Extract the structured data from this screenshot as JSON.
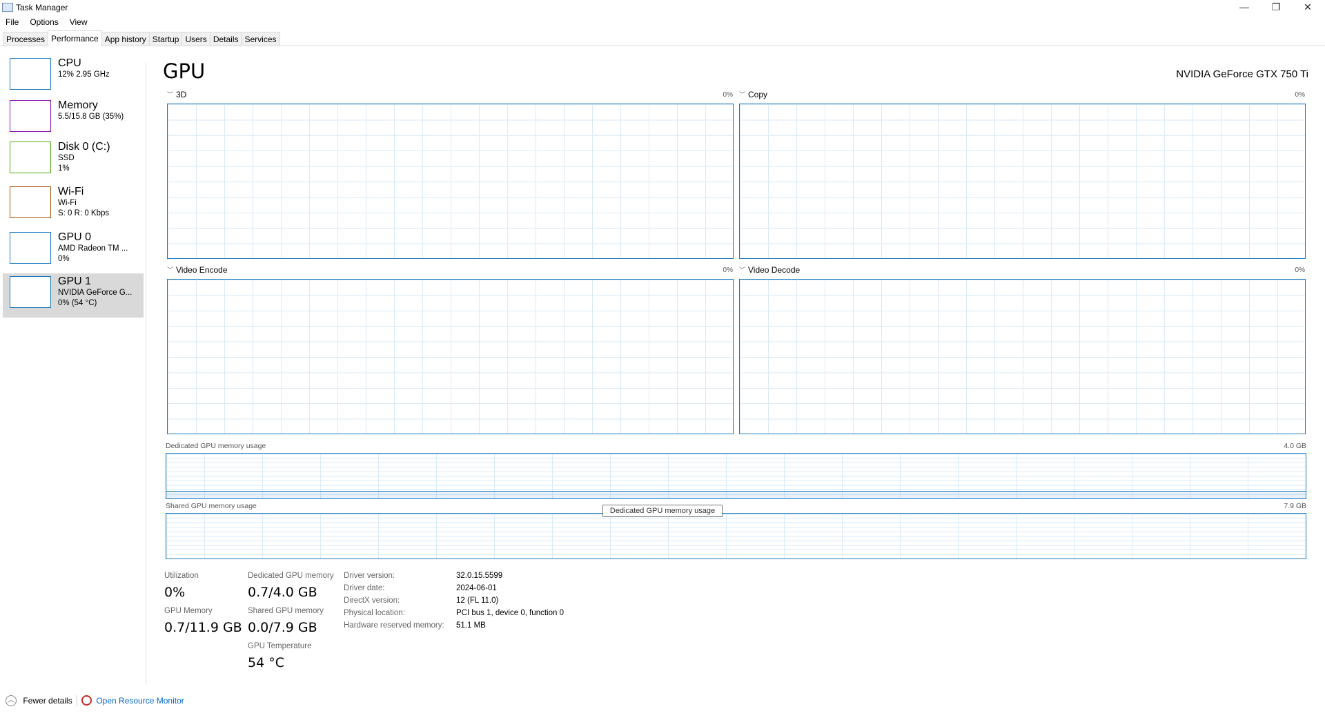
{
  "window": {
    "title": "Task Manager",
    "minimize": "—",
    "restore": "❐",
    "close": "✕"
  },
  "menu": [
    "File",
    "Options",
    "View"
  ],
  "tabs": [
    "Processes",
    "Performance",
    "App history",
    "Startup",
    "Users",
    "Details",
    "Services"
  ],
  "active_tab": "Performance",
  "sidebar": [
    {
      "name": "CPU",
      "line1": "12% 2.95 GHz",
      "line2": "",
      "color": "#1a78c0"
    },
    {
      "name": "Memory",
      "line1": "5.5/15.8 GB (35%)",
      "line2": "",
      "color": "#8b12ae"
    },
    {
      "name": "Disk 0 (C:)",
      "line1": "SSD",
      "line2": "1%",
      "color": "#4da60c"
    },
    {
      "name": "Wi-Fi",
      "line1": "Wi-Fi",
      "line2": "S: 0 R: 0 Kbps",
      "color": "#a74f01"
    },
    {
      "name": "GPU 0",
      "line1": "AMD Radeon TM ...",
      "line2": "0%",
      "color": "#1a78c0"
    },
    {
      "name": "GPU 1",
      "line1": "NVIDIA GeForce G...",
      "line2": "0%  (54 °C)",
      "color": "#1a78c0",
      "selected": true
    }
  ],
  "main": {
    "title": "GPU",
    "gpu_name": "NVIDIA GeForce GTX 750 Ti",
    "engines": [
      {
        "label": "3D",
        "value": "0%"
      },
      {
        "label": "Copy",
        "value": "0%"
      },
      {
        "label": "Video Encode",
        "value": "0%"
      },
      {
        "label": "Video Decode",
        "value": "0%"
      }
    ],
    "dedicated_chart": {
      "label": "Dedicated GPU memory usage",
      "max": "4.0 GB",
      "used_fraction": 0.175
    },
    "shared_chart": {
      "label": "Shared GPU memory usage",
      "max": "7.9 GB",
      "used_fraction": 0.0
    },
    "tooltip": "Dedicated GPU memory usage",
    "stats": {
      "utilization_label": "Utilization",
      "utilization": "0%",
      "gpu_memory_label": "GPU Memory",
      "gpu_memory": "0.7/11.9 GB",
      "dedicated_label": "Dedicated GPU memory",
      "dedicated": "0.7/4.0 GB",
      "shared_label": "Shared GPU memory",
      "shared": "0.0/7.9 GB",
      "temp_label": "GPU Temperature",
      "temp": "54 °C"
    },
    "info": [
      {
        "label": "Driver version:",
        "value": "32.0.15.5599"
      },
      {
        "label": "Driver date:",
        "value": "2024-06-01"
      },
      {
        "label": "DirectX version:",
        "value": "12 (FL 11.0)"
      },
      {
        "label": "Physical location:",
        "value": "PCI bus 1, device 0, function 0"
      },
      {
        "label": "Hardware reserved memory:",
        "value": "51.1 MB"
      }
    ]
  },
  "footer": {
    "fewer_details": "Fewer details",
    "resource_monitor": "Open Resource Monitor"
  }
}
